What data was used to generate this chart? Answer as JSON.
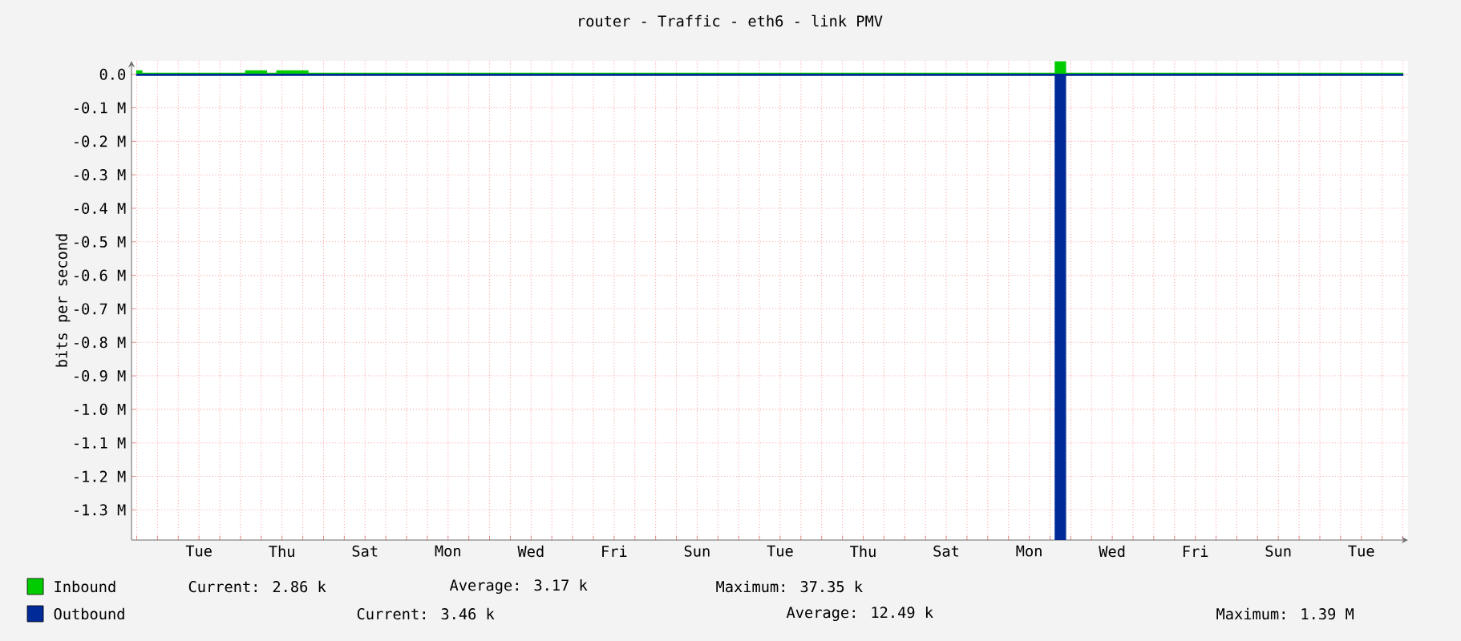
{
  "chart_data": {
    "type": "area",
    "title": "router - Traffic - eth6 - link PMV",
    "ylabel": "bits per second",
    "categories": [
      null,
      null,
      null,
      null,
      null,
      null,
      "Tue",
      null,
      null,
      null,
      null,
      null,
      null,
      null,
      "Thu",
      null,
      null,
      null,
      null,
      null,
      null,
      null,
      "Sat",
      null,
      null,
      null,
      null,
      null,
      null,
      null,
      "Mon",
      null,
      null,
      null,
      null,
      null,
      null,
      null,
      "Wed",
      null,
      null,
      null,
      null,
      null,
      null,
      null,
      "Fri",
      null,
      null,
      null,
      null,
      null,
      null,
      null,
      "Sun",
      null,
      null,
      null,
      null,
      null,
      null,
      null,
      "Tue",
      null,
      null,
      null,
      null,
      null,
      null,
      null,
      "Thu",
      null,
      null,
      null,
      null,
      null,
      null,
      null,
      "Sat",
      null,
      null,
      null,
      null,
      null,
      null,
      null,
      "Mon",
      null,
      null,
      null,
      null,
      null,
      null,
      null,
      "Wed",
      null,
      null,
      null,
      null,
      null,
      null,
      null,
      "Fri",
      null,
      null,
      null,
      null,
      null,
      null,
      null,
      "Sun",
      null,
      null,
      null,
      null,
      null,
      null,
      null,
      "Tue",
      null,
      null,
      null,
      null
    ],
    "ylim": [
      -1390000,
      40000
    ],
    "yticks": [
      {
        "value": 0,
        "label": "0.0"
      },
      {
        "value": -100000,
        "label": "-0.1 M"
      },
      {
        "value": -200000,
        "label": "-0.2 M"
      },
      {
        "value": -300000,
        "label": "-0.3 M"
      },
      {
        "value": -400000,
        "label": "-0.4 M"
      },
      {
        "value": -500000,
        "label": "-0.5 M"
      },
      {
        "value": -600000,
        "label": "-0.6 M"
      },
      {
        "value": -700000,
        "label": "-0.7 M"
      },
      {
        "value": -800000,
        "label": "-0.8 M"
      },
      {
        "value": -900000,
        "label": "-0.9 M"
      },
      {
        "value": -1000000,
        "label": "-1.0 M"
      },
      {
        "value": -1100000,
        "label": "-1.1 M"
      },
      {
        "value": -1200000,
        "label": "-1.2 M"
      },
      {
        "value": -1300000,
        "label": "-1.3 M"
      }
    ],
    "grid": true,
    "legend": "bottom",
    "series": [
      {
        "name": "Inbound",
        "color": "#00cc00",
        "values": [
          10000,
          3000,
          3000,
          3000,
          3000,
          3000,
          3000,
          3000,
          3000,
          3000,
          3000,
          10000,
          10000,
          3000,
          10000,
          10000,
          10000,
          3000,
          3000,
          3000,
          3000,
          3000,
          3000,
          3000,
          3000,
          3000,
          3000,
          3000,
          3000,
          3000,
          3000,
          3000,
          3000,
          3000,
          3000,
          3000,
          3000,
          3000,
          3000,
          3000,
          3000,
          3000,
          3000,
          3000,
          3000,
          3000,
          3000,
          3000,
          3000,
          3000,
          3000,
          3000,
          3000,
          3000,
          3000,
          3000,
          3000,
          3000,
          3000,
          3000,
          3000,
          3000,
          3000,
          3000,
          3000,
          3000,
          3000,
          3000,
          3000,
          3000,
          3000,
          3000,
          3000,
          3000,
          3000,
          3000,
          3000,
          3000,
          3000,
          3000,
          3000,
          3000,
          3000,
          3000,
          3000,
          3000,
          3000,
          3000,
          3000,
          37000,
          3000,
          3000,
          3000,
          3000,
          3000,
          3000,
          3000,
          3000,
          3000,
          3000,
          3000,
          3000,
          3000,
          3000,
          3000,
          3000,
          3000,
          3000,
          3000,
          3000,
          3000,
          3000,
          3000,
          3000,
          3000,
          3000,
          3000,
          3000,
          3000,
          3000,
          3000,
          3000,
          3000
        ]
      },
      {
        "name": "Outbound",
        "color": "#002a97",
        "values": [
          -3000,
          -3000,
          -3000,
          -3000,
          -3000,
          -3000,
          -3000,
          -3000,
          -3000,
          -3000,
          -3000,
          -3000,
          -3000,
          -3000,
          -3000,
          -3000,
          -3000,
          -3000,
          -3000,
          -3000,
          -3000,
          -3000,
          -3000,
          -3000,
          -3000,
          -3000,
          -3000,
          -3000,
          -3000,
          -3000,
          -3000,
          -3000,
          -3000,
          -3000,
          -3000,
          -3000,
          -3000,
          -3000,
          -3000,
          -3000,
          -3000,
          -3000,
          -3000,
          -3000,
          -3000,
          -3000,
          -3000,
          -3000,
          -3000,
          -3000,
          -3000,
          -3000,
          -3000,
          -3000,
          -3000,
          -3000,
          -3000,
          -3000,
          -3000,
          -3000,
          -3000,
          -3000,
          -3000,
          -3000,
          -3000,
          -3000,
          -3000,
          -3000,
          -3000,
          -3000,
          -3000,
          -3000,
          -3000,
          -3000,
          -3000,
          -3000,
          -3000,
          -3000,
          -3000,
          -3000,
          -3000,
          -3000,
          -3000,
          -3000,
          -3000,
          -3000,
          -3000,
          -3000,
          -3000,
          -1390000,
          -3000,
          -3000,
          -3000,
          -3000,
          -3000,
          -3000,
          -3000,
          -3000,
          -3000,
          -3000,
          -3000,
          -3000,
          -3000,
          -3000,
          -3000,
          -3000,
          -3000,
          -3000,
          -3000,
          -3000,
          -3000,
          -3000,
          -3000,
          -3000,
          -3000,
          -3000,
          -3000,
          -3000,
          -3000,
          -3000,
          -3000,
          -3000,
          -3000
        ]
      }
    ],
    "annotations": [
      "Current: 2.86 k",
      "Average: 3.17 k",
      "Maximum: 37.35 k",
      "Current: 3.46 k",
      "Average: 12.49 k",
      "Maximum: 1.39 M"
    ]
  }
}
